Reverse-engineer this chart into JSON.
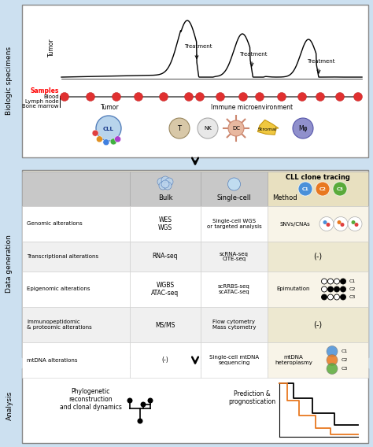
{
  "bg_color": "#cce0f0",
  "section1_label": "Biologic specimens",
  "section2_label": "Data generation",
  "section3_label": "Analysis",
  "clone_colors": {
    "C1": "#4a90d9",
    "C2": "#e87820",
    "C3": "#5aaa3a"
  },
  "epi_patterns": [
    {
      "filled": [
        false,
        false,
        false,
        true
      ],
      "label": "C1"
    },
    {
      "filled": [
        false,
        true,
        true,
        true
      ],
      "label": "C2"
    },
    {
      "filled": [
        true,
        false,
        false,
        true
      ],
      "label": "C3"
    }
  ],
  "rows": [
    {
      "label": "Genomic alterations",
      "bulk": "WES\nWGS",
      "sc": "Single-cell WGS\nor targeted analysis",
      "method": "SNVs/CNAs",
      "type": "snv"
    },
    {
      "label": "Transcriptional alterations",
      "bulk": "RNA-seq",
      "sc": "scRNA-seq\nCITE-seq",
      "method": "(-)",
      "type": "neg"
    },
    {
      "label": "Epigenomic alterations",
      "bulk": "WGBS\nATAC-seq",
      "sc": "scRRBS-seq\nscATAC-seq",
      "method": "Epimutation",
      "type": "epi"
    },
    {
      "label": "Immunopeptidomic\n& proteomic alterations",
      "bulk": "MS/MS",
      "sc": "Flow cytometry\nMass cytometry",
      "method": "(-)",
      "type": "neg"
    },
    {
      "label": "mtDNA alterations",
      "bulk": "(-)",
      "sc": "Single-cell mtDNA\nsequencing",
      "method": "mtDNA\nheteroplasmy",
      "type": "mtdna"
    }
  ],
  "analysis_left": "Phylogenetic\nreconstruction\nand clonal dynamics",
  "analysis_right": "Prediction &\nprognostication"
}
